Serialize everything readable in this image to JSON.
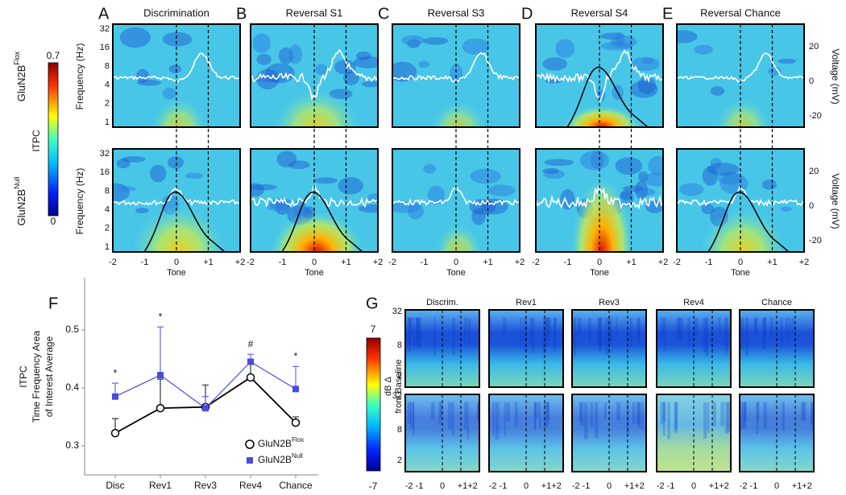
{
  "panel_letters": [
    "A",
    "B",
    "C",
    "D",
    "E",
    "F",
    "G"
  ],
  "top_titles": [
    "Discrimination",
    "Reversal S1",
    "Reversal S3",
    "Reversal S4",
    "Reversal Chance"
  ],
  "row_labels": [
    {
      "text": "GluN2B",
      "sup": "Flox"
    },
    {
      "text": "GluN2B",
      "sup": "Null"
    }
  ],
  "itpc_colorbar": {
    "label": "ITPC",
    "max": "0.7",
    "min": "0"
  },
  "freq_axis_label": "Frequency (Hz)",
  "freq_ticks": [
    "32",
    "16",
    "8",
    "4",
    "2",
    "1"
  ],
  "voltage_axis_label": "Voltage (mV)",
  "voltage_ticks": [
    "20",
    "0",
    "-20"
  ],
  "time_ticks": [
    "-2",
    "-1",
    "0",
    "+1",
    "+2"
  ],
  "time_label": "Tone",
  "chart_data": {
    "type": "line",
    "categories": [
      "Disc",
      "Rev1",
      "Rev3",
      "Rev4",
      "Chance"
    ],
    "series": [
      {
        "name": "GluN2B",
        "name_superscript": "Flox",
        "color": "#000000",
        "marker": "open-circle",
        "values": [
          0.322,
          0.365,
          0.367,
          0.418,
          0.34
        ],
        "errors": [
          0.025,
          0.05,
          0.038,
          0.03,
          0.01
        ]
      },
      {
        "name": "GluN2B",
        "name_superscript": "Null",
        "color": "#4a4ae0",
        "marker": "square",
        "values": [
          0.385,
          0.422,
          0.365,
          0.445,
          0.398
        ],
        "errors": [
          0.023,
          0.083,
          0.02,
          0.013,
          0.039
        ]
      }
    ],
    "significance": [
      "*",
      "*",
      null,
      "#",
      "*"
    ],
    "ylabel_lines": [
      "ITPC",
      "Time Frequency Area",
      "of Interest Average"
    ],
    "ylim": [
      0.25,
      0.59
    ],
    "yticks": [
      0.3,
      0.4,
      0.5
    ],
    "legend_position": "bottom-right"
  },
  "panel_g": {
    "titles": [
      "Discrim.",
      "Rev1",
      "Rev3",
      "Rev4",
      "Chance"
    ],
    "colorbar": {
      "max": "7",
      "min": "-7",
      "label_lines": [
        "dB Δ",
        "from Baseline"
      ]
    },
    "freq_ticks": [
      "32",
      "8",
      "2"
    ],
    "time_ticks": [
      "-2 -1",
      "0",
      "+1+2"
    ]
  }
}
